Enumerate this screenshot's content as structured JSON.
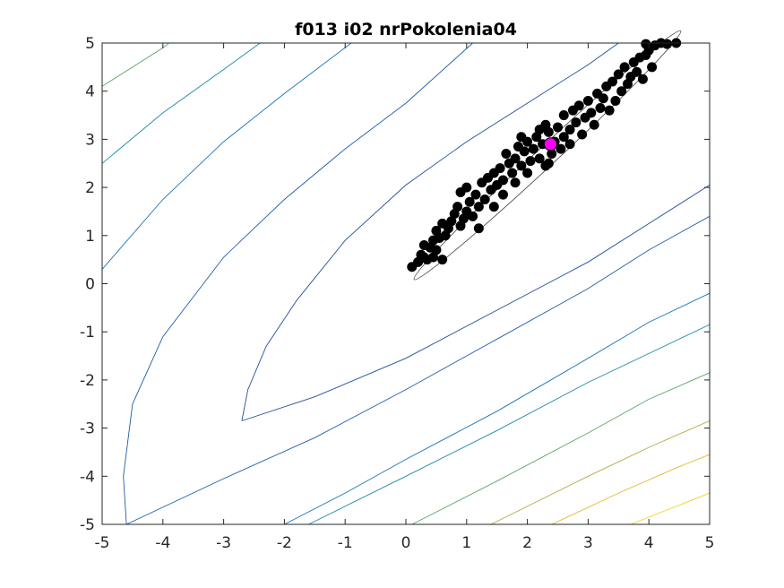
{
  "chart_data": {
    "type": "scatter",
    "title": "f013 i02 nrPokolenia04",
    "xlabel": "",
    "ylabel": "",
    "xlim": [
      -5,
      5
    ],
    "ylim": [
      -5,
      5
    ],
    "grid": false,
    "x_ticks": [
      "-5",
      "-4",
      "-3",
      "-2",
      "-1",
      "0",
      "1",
      "2",
      "3",
      "4",
      "5"
    ],
    "y_ticks": [
      "-5",
      "-4",
      "-3",
      "-2",
      "-1",
      "0",
      "1",
      "2",
      "3",
      "4",
      "5"
    ],
    "contours": [
      {
        "level": 1,
        "color": "#1f4f99",
        "points": [
          [
            -2.7,
            -2.85
          ],
          [
            -2.6,
            -2.2
          ],
          [
            -2.3,
            -1.3
          ],
          [
            -1.8,
            -0.35
          ],
          [
            -1.0,
            0.9
          ],
          [
            0.0,
            2.05
          ],
          [
            1.0,
            2.95
          ],
          [
            2.0,
            3.75
          ],
          [
            3.0,
            4.55
          ],
          [
            3.5,
            5.0
          ]
        ]
      },
      {
        "level": 1,
        "color": "#1f4f99",
        "points": [
          [
            -2.7,
            -2.85
          ],
          [
            -1.5,
            -2.35
          ],
          [
            0.0,
            -1.55
          ],
          [
            1.5,
            -0.55
          ],
          [
            3.0,
            0.45
          ],
          [
            4.0,
            1.25
          ],
          [
            5.0,
            2.05
          ]
        ]
      },
      {
        "level": 2,
        "color": "#1d5fa8",
        "points": [
          [
            -4.6,
            -5.0
          ],
          [
            -4.65,
            -4.0
          ],
          [
            -4.5,
            -2.5
          ],
          [
            -4.0,
            -1.1
          ],
          [
            -3.0,
            0.55
          ],
          [
            -2.0,
            1.75
          ],
          [
            -1.0,
            2.8
          ],
          [
            0.0,
            3.75
          ],
          [
            1.1,
            5.0
          ]
        ]
      },
      {
        "level": 2,
        "color": "#1d5fa8",
        "points": [
          [
            -4.6,
            -5.0
          ],
          [
            -3.0,
            -4.05
          ],
          [
            -1.5,
            -3.2
          ],
          [
            0.0,
            -2.2
          ],
          [
            1.5,
            -1.15
          ],
          [
            3.0,
            -0.1
          ],
          [
            4.0,
            0.7
          ],
          [
            5.0,
            1.4
          ]
        ]
      },
      {
        "level": 3,
        "color": "#1a74b8",
        "points": [
          [
            -5.0,
            0.3
          ],
          [
            -4.0,
            1.75
          ],
          [
            -3.0,
            2.95
          ],
          [
            -2.0,
            3.95
          ],
          [
            -0.9,
            5.0
          ]
        ]
      },
      {
        "level": 3,
        "color": "#1a74b8",
        "points": [
          [
            -2.0,
            -5.0
          ],
          [
            -1.0,
            -4.35
          ],
          [
            0.0,
            -3.65
          ],
          [
            1.5,
            -2.65
          ],
          [
            3.0,
            -1.55
          ],
          [
            4.0,
            -0.8
          ],
          [
            5.0,
            -0.2
          ]
        ]
      },
      {
        "level": 4,
        "color": "#1b8aa6",
        "points": [
          [
            -5.0,
            2.5
          ],
          [
            -4.0,
            3.55
          ],
          [
            -3.0,
            4.45
          ],
          [
            -2.4,
            5.0
          ]
        ]
      },
      {
        "level": 4,
        "color": "#1b8aa6",
        "points": [
          [
            -1.6,
            -5.0
          ],
          [
            0.0,
            -4.0
          ],
          [
            1.5,
            -3.05
          ],
          [
            3.0,
            -2.05
          ],
          [
            4.0,
            -1.45
          ],
          [
            5.0,
            -0.85
          ]
        ]
      },
      {
        "level": 5,
        "color": "#58a66a",
        "points": [
          [
            -5.0,
            4.1
          ],
          [
            -4.0,
            4.9
          ],
          [
            -3.9,
            5.0
          ]
        ]
      },
      {
        "level": 5,
        "color": "#58a66a",
        "points": [
          [
            0.1,
            -5.0
          ],
          [
            1.5,
            -4.1
          ],
          [
            3.0,
            -3.1
          ],
          [
            4.0,
            -2.4
          ],
          [
            5.0,
            -1.85
          ]
        ]
      },
      {
        "level": 6,
        "color": "#b6a840",
        "points": [
          [
            1.4,
            -5.0
          ],
          [
            3.0,
            -4.0
          ],
          [
            4.0,
            -3.4
          ],
          [
            5.0,
            -2.85
          ]
        ]
      },
      {
        "level": 7,
        "color": "#e2b92a",
        "points": [
          [
            2.4,
            -5.0
          ],
          [
            3.5,
            -4.35
          ],
          [
            4.5,
            -3.8
          ],
          [
            5.0,
            -3.55
          ]
        ]
      },
      {
        "level": 8,
        "color": "#f0d21e",
        "points": [
          [
            3.7,
            -5.0
          ],
          [
            4.5,
            -4.6
          ],
          [
            5.0,
            -4.35
          ]
        ]
      }
    ],
    "ellipse": {
      "center": [
        2.33,
        2.67
      ],
      "radii": [
        3.0,
        0.16
      ],
      "angle_deg": 43
    },
    "population": {
      "name": "population",
      "color": "#000000",
      "points": [
        [
          0.1,
          0.35
        ],
        [
          0.2,
          0.45
        ],
        [
          0.3,
          0.55
        ],
        [
          0.25,
          0.6
        ],
        [
          0.35,
          0.5
        ],
        [
          0.45,
          0.55
        ],
        [
          0.5,
          0.7
        ],
        [
          0.4,
          0.75
        ],
        [
          0.3,
          0.8
        ],
        [
          0.45,
          0.9
        ],
        [
          0.55,
          0.95
        ],
        [
          0.5,
          1.1
        ],
        [
          0.65,
          1.0
        ],
        [
          0.7,
          1.15
        ],
        [
          0.6,
          1.25
        ],
        [
          0.75,
          1.3
        ],
        [
          0.8,
          1.45
        ],
        [
          0.9,
          1.2
        ],
        [
          0.95,
          1.35
        ],
        [
          0.85,
          1.6
        ],
        [
          1.0,
          1.5
        ],
        [
          1.05,
          1.7
        ],
        [
          1.1,
          1.4
        ],
        [
          1.15,
          1.85
        ],
        [
          1.2,
          1.6
        ],
        [
          0.9,
          1.9
        ],
        [
          1.0,
          2.0
        ],
        [
          1.3,
          1.75
        ],
        [
          1.25,
          2.1
        ],
        [
          1.35,
          2.2
        ],
        [
          1.4,
          1.95
        ],
        [
          1.5,
          2.05
        ],
        [
          1.45,
          2.3
        ],
        [
          1.55,
          2.4
        ],
        [
          1.6,
          2.15
        ],
        [
          1.7,
          2.5
        ],
        [
          1.65,
          2.7
        ],
        [
          1.75,
          2.3
        ],
        [
          1.8,
          2.6
        ],
        [
          1.85,
          2.85
        ],
        [
          1.9,
          2.45
        ],
        [
          1.95,
          2.75
        ],
        [
          2.0,
          2.95
        ],
        [
          2.05,
          2.55
        ],
        [
          2.1,
          2.8
        ],
        [
          2.15,
          3.05
        ],
        [
          2.2,
          2.6
        ],
        [
          2.25,
          2.9
        ],
        [
          2.3,
          2.45
        ],
        [
          2.35,
          3.15
        ],
        [
          2.4,
          2.7
        ],
        [
          2.45,
          2.95
        ],
        [
          2.5,
          3.25
        ],
        [
          2.55,
          2.8
        ],
        [
          2.6,
          3.05
        ],
        [
          2.0,
          2.3
        ],
        [
          1.9,
          3.05
        ],
        [
          2.2,
          3.2
        ],
        [
          2.3,
          3.3
        ],
        [
          2.6,
          3.5
        ],
        [
          2.7,
          3.2
        ],
        [
          2.75,
          3.6
        ],
        [
          2.8,
          3.35
        ],
        [
          2.85,
          3.7
        ],
        [
          2.9,
          3.1
        ],
        [
          2.95,
          3.45
        ],
        [
          3.0,
          3.8
        ],
        [
          3.05,
          3.55
        ],
        [
          3.1,
          3.3
        ],
        [
          3.15,
          3.95
        ],
        [
          3.2,
          3.65
        ],
        [
          3.25,
          3.85
        ],
        [
          3.3,
          4.1
        ],
        [
          3.35,
          3.6
        ],
        [
          3.4,
          4.2
        ],
        [
          3.45,
          3.8
        ],
        [
          3.5,
          4.35
        ],
        [
          3.55,
          4.0
        ],
        [
          3.6,
          4.5
        ],
        [
          3.65,
          4.15
        ],
        [
          3.7,
          4.3
        ],
        [
          3.75,
          4.6
        ],
        [
          3.8,
          4.4
        ],
        [
          3.85,
          4.7
        ],
        [
          3.9,
          4.25
        ],
        [
          3.95,
          4.75
        ],
        [
          4.0,
          4.85
        ],
        [
          4.05,
          4.5
        ],
        [
          4.1,
          4.95
        ],
        [
          4.2,
          5.0
        ],
        [
          4.3,
          4.98
        ],
        [
          4.45,
          5.0
        ],
        [
          3.95,
          4.98
        ],
        [
          1.6,
          1.85
        ],
        [
          1.45,
          1.6
        ],
        [
          1.2,
          1.15
        ],
        [
          0.6,
          0.5
        ],
        [
          2.35,
          2.5
        ],
        [
          2.7,
          2.9
        ],
        [
          1.8,
          2.1
        ]
      ]
    },
    "best": {
      "name": "best",
      "x": 2.38,
      "y": 2.9,
      "color": "#ff00ff"
    }
  }
}
